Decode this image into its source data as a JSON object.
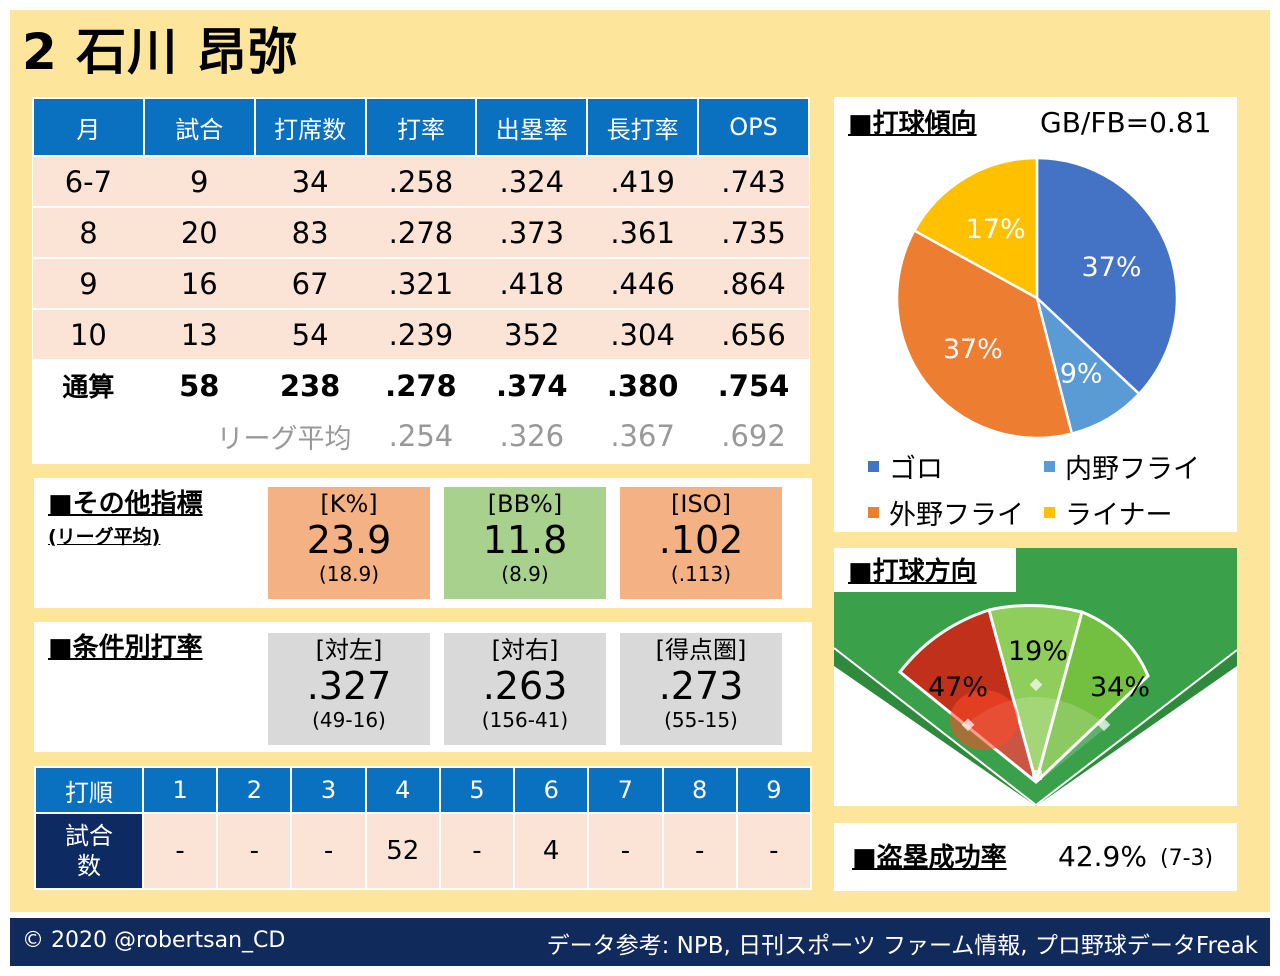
{
  "title": "2 石川 昂弥",
  "monthly": {
    "headers": [
      "月",
      "試合",
      "打席数",
      "打率",
      "出塁率",
      "長打率",
      "OPS"
    ],
    "rows": [
      [
        "6-7",
        "9",
        "34",
        ".258",
        ".324",
        ".419",
        ".743"
      ],
      [
        "8",
        "20",
        "83",
        ".278",
        ".373",
        ".361",
        ".735"
      ],
      [
        "9",
        "16",
        "67",
        ".321",
        ".418",
        ".446",
        ".864"
      ],
      [
        "10",
        "13",
        "54",
        ".239",
        "352",
        ".304",
        ".656"
      ]
    ],
    "total": [
      "通算",
      "58",
      "238",
      ".278",
      ".374",
      ".380",
      ".754"
    ],
    "league": {
      "label": "リーグ平均",
      "values": [
        ".254",
        ".326",
        ".367",
        ".692"
      ]
    }
  },
  "other": {
    "title": "■その他指標",
    "subtitle": "(リーグ平均)",
    "metrics": [
      {
        "label": "[K%]",
        "value": "23.9",
        "sub": "(18.9)",
        "color": "#f4b183"
      },
      {
        "label": "[BB%]",
        "value": "11.8",
        "sub": "(8.9)",
        "color": "#a9d18e"
      },
      {
        "label": "[ISO]",
        "value": ".102",
        "sub": "(.113)",
        "color": "#f4b183"
      }
    ]
  },
  "situational": {
    "title": "■条件別打率",
    "metrics": [
      {
        "label": "[対左]",
        "value": ".327",
        "sub": "(49-16)",
        "color": "#d9d9d9"
      },
      {
        "label": "[対右]",
        "value": ".263",
        "sub": "(156-41)",
        "color": "#d9d9d9"
      },
      {
        "label": "[得点圏]",
        "value": ".273",
        "sub": "(55-15)",
        "color": "#d9d9d9"
      }
    ]
  },
  "order": {
    "header": "打順",
    "slots": [
      "1",
      "2",
      "3",
      "4",
      "5",
      "6",
      "7",
      "8",
      "9"
    ],
    "row_label_1": "試合",
    "row_label_2": "数",
    "games": [
      "-",
      "-",
      "-",
      "52",
      "-",
      "4",
      "-",
      "-",
      "-"
    ]
  },
  "batted_ball": {
    "title": "■打球傾向",
    "gbfb": "GB/FB=0.81",
    "legend": [
      {
        "label": "ゴロ",
        "color": "#4472c4"
      },
      {
        "label": "内野フライ",
        "color": "#5b9bd5"
      },
      {
        "label": "外野フライ",
        "color": "#ed7d31"
      },
      {
        "label": "ライナー",
        "color": "#ffc000"
      }
    ]
  },
  "chart_data": {
    "type": "pie",
    "categories": [
      "ゴロ",
      "内野フライ",
      "外野フライ",
      "ライナー"
    ],
    "values": [
      37,
      9,
      37,
      17
    ],
    "labels": [
      "37%",
      "9%",
      "37%",
      "17%"
    ],
    "colors": [
      "#4472c4",
      "#5b9bd5",
      "#ed7d31",
      "#ffc000"
    ]
  },
  "direction": {
    "title": "■打球方向",
    "left": "47%",
    "center": "19%",
    "right": "34%",
    "colors": {
      "left": "#c0301a",
      "center": "#8fce5a",
      "right": "#73bf3f",
      "outfield_grass": "#3aa04a"
    }
  },
  "steal": {
    "title": "■盗塁成功率",
    "value": "42.9%",
    "detail": "(7-3)"
  },
  "footer": {
    "copyright": "© 2020 @robertsan_CD",
    "source": "データ参考: NPB, 日刊スポーツ ファーム情報, プロ野球データFreak"
  }
}
